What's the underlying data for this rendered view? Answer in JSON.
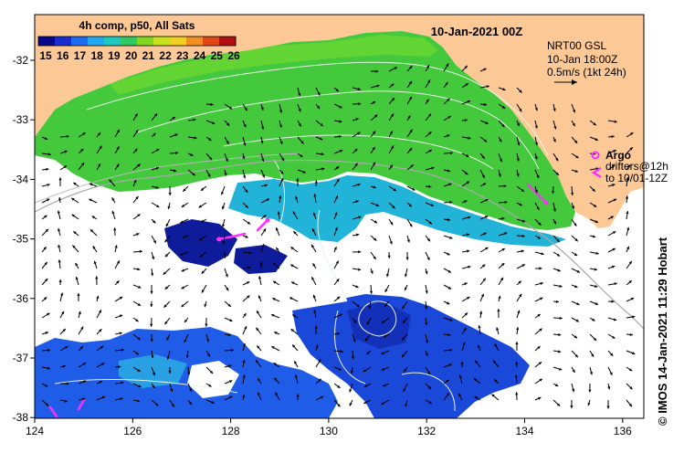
{
  "colorbar": {
    "title": "4h comp, p50, All Sats",
    "labels": [
      "15",
      "16",
      "17",
      "18",
      "19",
      "20",
      "21",
      "22",
      "23",
      "24",
      "25",
      "26"
    ],
    "colors": [
      "#08088c",
      "#1a2bd0",
      "#1f6cf0",
      "#20a8f0",
      "#1cc8c0",
      "#30c860",
      "#80d820",
      "#c8e020",
      "#f0d020",
      "#f09020",
      "#e04818",
      "#b01010"
    ]
  },
  "date_title": "10-Jan-2021 00Z",
  "current_info": {
    "line1": "NRT00 GSL",
    "line2": "10-Jan 18:00Z",
    "line3": "0.5m/s (1kt 24h)"
  },
  "argo_label": "Argo",
  "drifters_label": "drifters@12h",
  "drifters_time": "to 10/01-12Z",
  "credit": "© IMOS 14-Jan-2021 11:29 Hobart",
  "colors": {
    "land": "#fcc896",
    "argo": "#ff30ff",
    "contour": "#ffffff",
    "axis": "#000000"
  },
  "axes": {
    "lon_ticks": [
      "124",
      "126",
      "128",
      "130",
      "132",
      "134",
      "136"
    ],
    "lat_ticks": [
      "-32",
      "-33",
      "-34",
      "-35",
      "-36",
      "-37",
      "-38"
    ]
  }
}
